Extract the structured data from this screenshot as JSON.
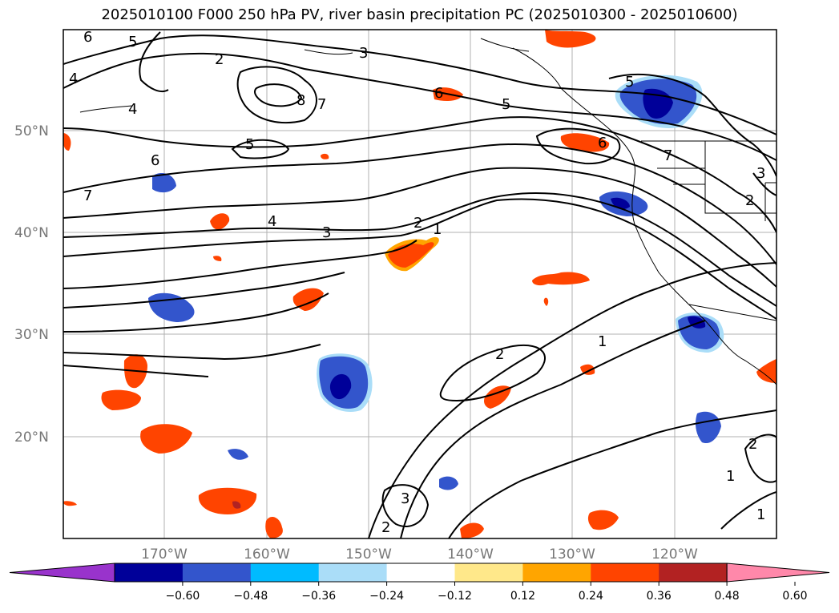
{
  "title": "2025010100 F000 250 hPa PV, river basin precipitation PC (2025010300 - 2025010600)",
  "map": {
    "lat_ticks": [
      "50°N",
      "40°N",
      "30°N",
      "20°N"
    ],
    "lon_ticks": [
      "170°W",
      "160°W",
      "150°W",
      "140°W",
      "130°W",
      "120°W"
    ],
    "contour_labels": [
      "6",
      "5",
      "4",
      "2",
      "3",
      "8",
      "7",
      "4",
      "5",
      "6",
      "5",
      "6",
      "7",
      "4",
      "3",
      "2",
      "1",
      "6",
      "5",
      "7",
      "3",
      "2",
      "1",
      "2",
      "3",
      "2",
      "1",
      "2",
      "1"
    ]
  },
  "colorbar": {
    "ticks": [
      "−0.60",
      "−0.48",
      "−0.36",
      "−0.24",
      "−0.12",
      "0.12",
      "0.24",
      "0.36",
      "0.48",
      "0.60"
    ],
    "colors": [
      "#9933cc",
      "#000099",
      "#3355cc",
      "#00bbff",
      "#aaddf8",
      "#ffffff",
      "#ffe88a",
      "#ffa500",
      "#ff4400",
      "#b22222",
      "#ff88aa"
    ]
  }
}
